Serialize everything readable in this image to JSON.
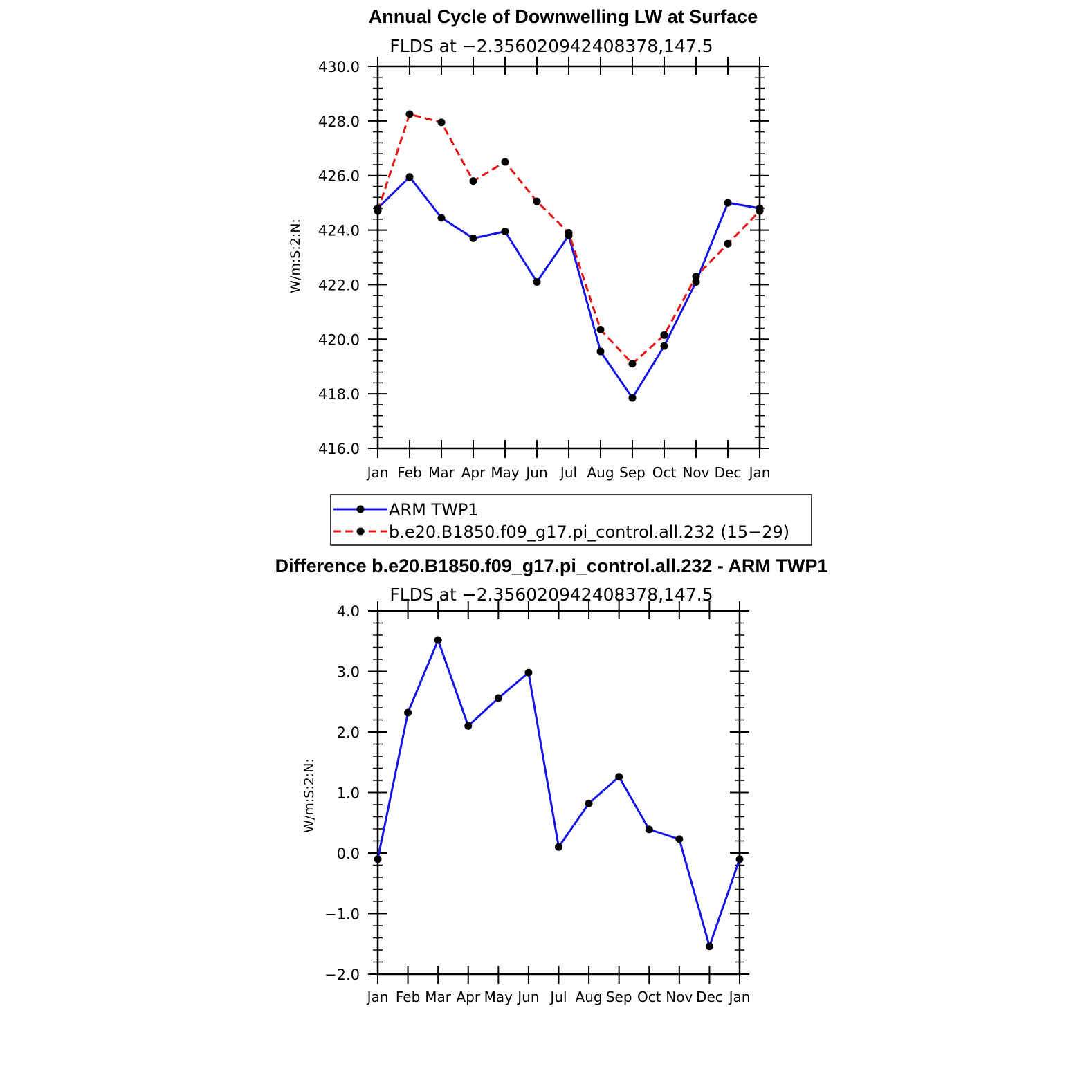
{
  "colors": {
    "obs": "#1414e6",
    "model": "#e61414",
    "marker": "#000000"
  },
  "chart_data": [
    {
      "type": "line",
      "title": "Annual Cycle of Downwelling LW at Surface",
      "subtitle": "FLDS at −2.356020942408378,147.5",
      "ylabel": "W/m:S:2:N:",
      "xlabel": "",
      "categories": [
        "Jan",
        "Feb",
        "Mar",
        "Apr",
        "May",
        "Jun",
        "Jul",
        "Aug",
        "Sep",
        "Oct",
        "Nov",
        "Dec",
        "Jan"
      ],
      "ylim": [
        416.0,
        430.0
      ],
      "yticks": [
        "416.0",
        "418.0",
        "420.0",
        "422.0",
        "424.0",
        "426.0",
        "428.0",
        "430.0"
      ],
      "series": [
        {
          "name": "ARM TWP1",
          "style": "solid",
          "values": [
            424.8,
            425.95,
            424.45,
            423.7,
            423.95,
            422.1,
            423.8,
            419.55,
            417.85,
            419.75,
            422.1,
            425.0,
            424.8
          ]
        },
        {
          "name": "b.e20.B1850.f09_g17.pi_control.all.232 (15−29)",
          "style": "dashed",
          "values": [
            424.7,
            428.25,
            427.95,
            425.8,
            426.5,
            425.05,
            423.9,
            420.35,
            419.1,
            420.15,
            422.3,
            423.5,
            424.7
          ]
        }
      ]
    },
    {
      "type": "line",
      "title": "Difference b.e20.B1850.f09_g17.pi_control.all.232 - ARM TWP1",
      "subtitle": "FLDS at −2.356020942408378,147.5",
      "ylabel": "W/m:S:2:N:",
      "xlabel": "",
      "categories": [
        "Jan",
        "Feb",
        "Mar",
        "Apr",
        "May",
        "Jun",
        "Jul",
        "Aug",
        "Sep",
        "Oct",
        "Nov",
        "Dec",
        "Jan"
      ],
      "ylim": [
        -2.0,
        4.0
      ],
      "yticks": [
        "−2.0",
        "−1.0",
        "0.0",
        "1.0",
        "2.0",
        "3.0",
        "4.0"
      ],
      "series": [
        {
          "name": "Difference",
          "style": "solid",
          "values": [
            -0.1,
            2.32,
            3.52,
            2.1,
            2.56,
            2.98,
            0.1,
            0.82,
            1.26,
            0.39,
            0.23,
            -1.54,
            -0.1
          ]
        }
      ]
    }
  ]
}
